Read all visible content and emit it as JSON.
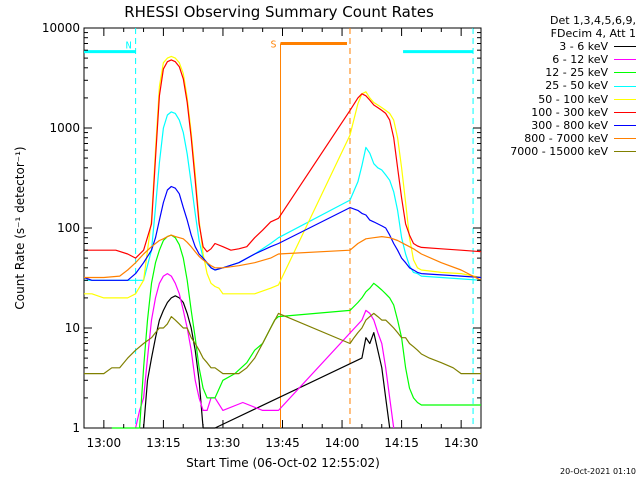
{
  "chart_data": {
    "type": "line",
    "title": "RHESSI Observing Summary Count Rates",
    "xlabel": "Start Time (06-Oct-02 12:55:02)",
    "ylabel": "Count Rate (s⁻¹ detector⁻¹)",
    "yscale": "log",
    "ylim": [
      1,
      10000
    ],
    "xlim_minutes": [
      -5,
      95
    ],
    "x_tick_labels": [
      "13:00",
      "13:15",
      "13:30",
      "13:45",
      "14:00",
      "14:15",
      "14:30"
    ],
    "y_tick_labels": [
      "1",
      "10",
      "100",
      "1000",
      "10000"
    ],
    "legend_header": [
      "Det 1,3,4,5,6,9,",
      "FDecim 4, Att 1"
    ],
    "legend_position": "outside-right",
    "markers": {
      "night_label": "N",
      "saa_label": "S",
      "night_level": 5800,
      "saa_level": 7000,
      "night_lines": [
        8,
        93
      ],
      "saa_lines": [
        44.5,
        62
      ]
    },
    "series": [
      {
        "name": "3 - 6 keV",
        "color": "#000000",
        "x": [
          10,
          11,
          12,
          13,
          14,
          15,
          16,
          17,
          18,
          19,
          20,
          21,
          22,
          23,
          24,
          25,
          26,
          27,
          28,
          65,
          66,
          67,
          68,
          69,
          70,
          71,
          72
        ],
        "y": [
          1,
          3,
          5,
          8,
          12,
          15,
          18,
          20,
          21,
          20,
          18,
          14,
          10,
          6,
          3,
          1,
          1,
          1,
          1,
          5,
          8,
          7,
          9,
          6,
          4,
          2,
          1
        ]
      },
      {
        "name": "6 - 12 keV",
        "color": "#ff00ff",
        "x": [
          8,
          9,
          10,
          11,
          12,
          13,
          14,
          15,
          16,
          17,
          18,
          19,
          20,
          21,
          22,
          23,
          24,
          25,
          26,
          27,
          28,
          30,
          35,
          40,
          44,
          65,
          66,
          67,
          68,
          69,
          70,
          71,
          72,
          73
        ],
        "y": [
          1,
          1.5,
          2,
          5,
          12,
          20,
          28,
          33,
          35,
          33,
          28,
          22,
          15,
          10,
          6,
          3,
          2,
          1.5,
          1.5,
          2,
          2,
          1.5,
          1.8,
          1.5,
          1.5,
          12,
          15,
          14,
          12,
          9,
          7,
          4,
          2,
          1
        ]
      },
      {
        "name": "12 - 25 keV",
        "color": "#00ff00",
        "x": [
          2,
          4,
          6,
          9,
          10,
          11,
          12,
          13,
          14,
          15,
          16,
          17,
          18,
          19,
          20,
          21,
          22,
          23,
          24,
          25,
          26,
          27,
          28,
          30,
          33,
          36,
          38,
          40,
          42,
          43,
          44,
          62,
          64,
          65,
          66,
          67,
          68,
          69,
          70,
          71,
          72,
          73,
          74,
          75,
          76,
          77,
          78,
          79,
          80,
          85,
          90,
          95
        ],
        "y": [
          1,
          1,
          1,
          1,
          4,
          12,
          28,
          45,
          60,
          75,
          82,
          85,
          80,
          68,
          50,
          30,
          15,
          8,
          4,
          2.5,
          2,
          2,
          2,
          3,
          3.5,
          4.5,
          6,
          7,
          10,
          12,
          13,
          15,
          18,
          20,
          23,
          25,
          28,
          26,
          24,
          22,
          20,
          17,
          12,
          8,
          4,
          2.5,
          2,
          1.8,
          1.7,
          1.7,
          1.7,
          1.7
        ]
      },
      {
        "name": "25 - 50 keV",
        "color": "#00ffff",
        "x": [
          -5,
          -3,
          0,
          3,
          6,
          8,
          10,
          12,
          13,
          14,
          15,
          16,
          17,
          18,
          19,
          20,
          21,
          22,
          23,
          24,
          25,
          26,
          27,
          28,
          30,
          34,
          38,
          42,
          44,
          62,
          64,
          65,
          66,
          67,
          68,
          69,
          70,
          71,
          72,
          73,
          74,
          75,
          76,
          77,
          78,
          79,
          80,
          85,
          90,
          95
        ],
        "y": [
          30,
          30,
          30,
          30,
          30,
          30,
          30,
          60,
          160,
          450,
          1000,
          1350,
          1450,
          1400,
          1200,
          900,
          550,
          280,
          140,
          75,
          50,
          44,
          40,
          38,
          40,
          45,
          55,
          70,
          80,
          190,
          290,
          420,
          640,
          560,
          440,
          400,
          380,
          340,
          300,
          230,
          150,
          80,
          55,
          42,
          36,
          35,
          33,
          32,
          31,
          30
        ]
      },
      {
        "name": "50 - 100 keV",
        "color": "#ffff00",
        "x": [
          -5,
          -3,
          0,
          3,
          6,
          8,
          10,
          12,
          13,
          14,
          15,
          16,
          17,
          18,
          19,
          20,
          21,
          22,
          23,
          24,
          25,
          26,
          27,
          28,
          29,
          30,
          34,
          38,
          42,
          44,
          62,
          64,
          65,
          66,
          67,
          68,
          69,
          70,
          71,
          72,
          73,
          74,
          75,
          76,
          77,
          78,
          79,
          80,
          85,
          90,
          95
        ],
        "y": [
          22,
          22,
          20,
          20,
          20,
          22,
          30,
          120,
          600,
          2600,
          4500,
          5000,
          5200,
          5000,
          4500,
          3500,
          2000,
          900,
          350,
          120,
          55,
          35,
          28,
          26,
          25,
          22,
          22,
          22,
          25,
          27,
          850,
          1750,
          2200,
          2300,
          2000,
          1800,
          1700,
          1600,
          1500,
          1400,
          1200,
          800,
          400,
          180,
          80,
          48,
          40,
          38,
          36,
          35,
          32
        ]
      },
      {
        "name": "100 - 300 keV",
        "color": "#ff0000",
        "x": [
          -5,
          -3,
          0,
          3,
          6,
          8,
          10,
          12,
          13,
          14,
          15,
          16,
          17,
          18,
          19,
          20,
          21,
          22,
          23,
          24,
          25,
          26,
          27,
          28,
          30,
          32,
          34,
          36,
          38,
          40,
          42,
          44,
          62,
          64,
          65,
          66,
          67,
          68,
          69,
          70,
          71,
          72,
          73,
          74,
          75,
          76,
          77,
          78,
          79,
          80,
          85,
          90,
          95
        ],
        "y": [
          60,
          60,
          60,
          60,
          55,
          50,
          60,
          110,
          500,
          2100,
          3900,
          4600,
          4800,
          4600,
          4100,
          3100,
          1800,
          800,
          300,
          110,
          65,
          58,
          62,
          70,
          65,
          60,
          62,
          65,
          80,
          95,
          115,
          125,
          1500,
          2000,
          2200,
          2100,
          1900,
          1700,
          1600,
          1500,
          1400,
          1200,
          800,
          400,
          200,
          110,
          85,
          70,
          66,
          64,
          62,
          60,
          58
        ]
      },
      {
        "name": "300 - 800 keV",
        "color": "#0000ff",
        "x": [
          -5,
          -3,
          0,
          3,
          6,
          8,
          10,
          12,
          13,
          14,
          15,
          16,
          17,
          18,
          19,
          20,
          21,
          22,
          23,
          24,
          25,
          26,
          27,
          28,
          30,
          34,
          38,
          42,
          44,
          62,
          64,
          65,
          66,
          67,
          68,
          69,
          70,
          71,
          72,
          73,
          74,
          75,
          76,
          77,
          78,
          79,
          80,
          85,
          90,
          95
        ],
        "y": [
          32,
          30,
          30,
          30,
          30,
          35,
          45,
          60,
          80,
          120,
          180,
          240,
          260,
          250,
          220,
          160,
          120,
          85,
          65,
          55,
          50,
          45,
          40,
          38,
          40,
          45,
          55,
          65,
          70,
          160,
          150,
          140,
          135,
          120,
          115,
          110,
          105,
          100,
          85,
          70,
          60,
          50,
          45,
          40,
          38,
          36,
          35,
          34,
          33,
          32
        ]
      },
      {
        "name": "800 - 7000 keV",
        "color": "#ff8000",
        "x": [
          -5,
          0,
          4,
          6,
          8,
          10,
          12,
          13,
          14,
          15,
          16,
          17,
          18,
          19,
          20,
          21,
          22,
          23,
          24,
          25,
          26,
          27,
          28,
          30,
          34,
          38,
          42,
          44,
          62,
          64,
          66,
          68,
          70,
          72,
          74,
          76,
          78,
          80,
          85,
          90,
          95
        ],
        "y": [
          32,
          32,
          33,
          38,
          45,
          55,
          65,
          70,
          75,
          78,
          82,
          85,
          82,
          80,
          78,
          72,
          65,
          58,
          52,
          48,
          45,
          42,
          40,
          40,
          42,
          45,
          50,
          55,
          60,
          70,
          78,
          80,
          82,
          80,
          75,
          68,
          62,
          55,
          45,
          38,
          30
        ]
      },
      {
        "name": "7000 - 15000 keV",
        "color": "#808000",
        "x": [
          -5,
          -3,
          0,
          2,
          4,
          6,
          8,
          10,
          12,
          13,
          14,
          15,
          16,
          17,
          18,
          19,
          20,
          21,
          22,
          23,
          24,
          25,
          26,
          27,
          28,
          30,
          32,
          34,
          36,
          38,
          40,
          42,
          44,
          62,
          63,
          64,
          65,
          66,
          67,
          68,
          69,
          70,
          71,
          72,
          73,
          74,
          75,
          76,
          77,
          78,
          79,
          80,
          82,
          85,
          88,
          90,
          93,
          95
        ],
        "y": [
          3.5,
          3.5,
          3.5,
          4,
          4,
          5,
          6,
          7,
          8,
          9,
          10,
          10,
          11,
          13,
          12,
          11,
          10,
          10,
          8,
          7,
          6,
          5,
          4.5,
          4,
          4,
          3.5,
          3.5,
          3.5,
          4,
          5,
          7,
          10,
          14,
          7,
          8,
          9,
          10,
          12,
          13,
          14,
          13,
          12,
          12,
          11,
          10,
          9,
          8,
          8,
          7,
          6.5,
          6,
          5.5,
          5,
          4.5,
          4,
          3.5,
          3.5,
          3.5
        ]
      }
    ]
  },
  "stamp": "20-Oct-2021 01:10"
}
